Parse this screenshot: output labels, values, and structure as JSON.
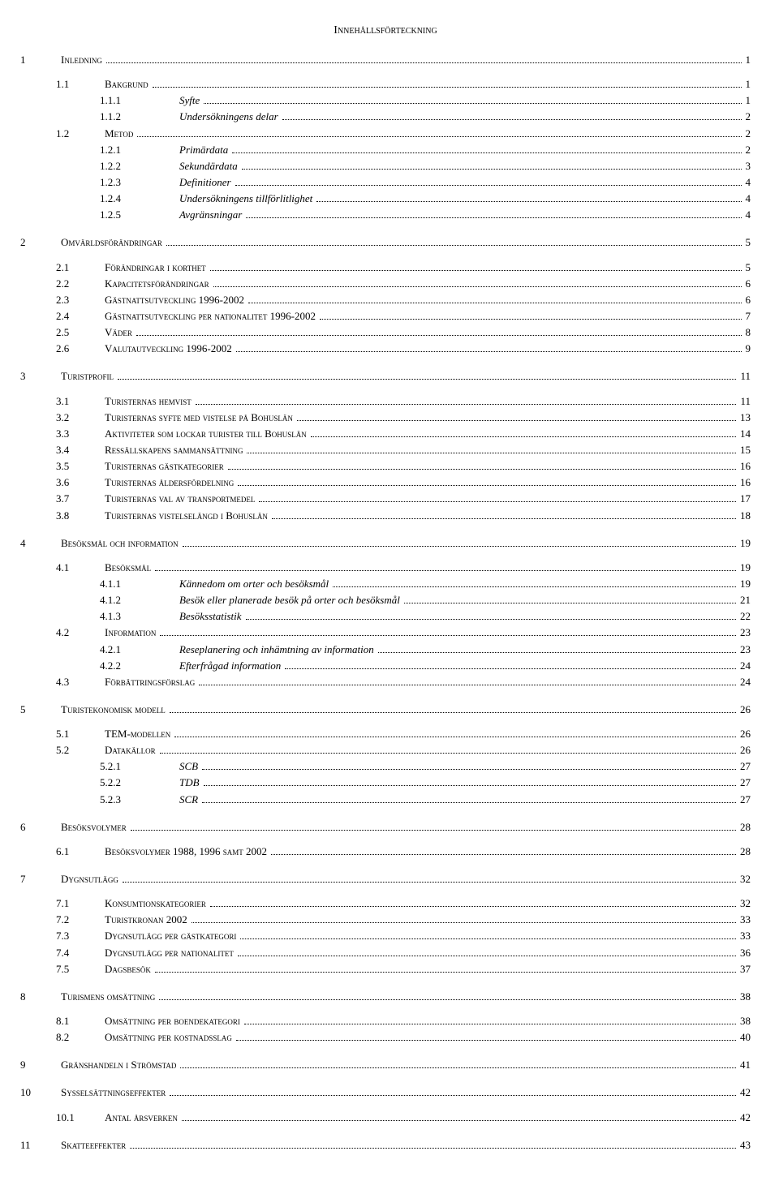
{
  "title": "Innehållsförteckning",
  "toc": [
    {
      "level": 0,
      "num": "1",
      "label": "Inledning",
      "page": "1",
      "style": "sc"
    },
    {
      "level": 1,
      "num": "1.1",
      "label": "Bakgrund",
      "page": "1",
      "style": "sc",
      "gapBefore": 10
    },
    {
      "level": 2,
      "num": "1.1.1",
      "label": "Syfte",
      "page": "1",
      "style": "italic"
    },
    {
      "level": 2,
      "num": "1.1.2",
      "label": "Undersökningens delar",
      "page": "2",
      "style": "italic"
    },
    {
      "level": 1,
      "num": "1.2",
      "label": "Metod",
      "page": "2",
      "style": "sc"
    },
    {
      "level": 2,
      "num": "1.2.1",
      "label": "Primärdata",
      "page": "2",
      "style": "italic"
    },
    {
      "level": 2,
      "num": "1.2.2",
      "label": "Sekundärdata",
      "page": "3",
      "style": "italic"
    },
    {
      "level": 2,
      "num": "1.2.3",
      "label": "Definitioner",
      "page": "4",
      "style": "italic"
    },
    {
      "level": 2,
      "num": "1.2.4",
      "label": "Undersökningens tillförlitlighet",
      "page": "4",
      "style": "italic"
    },
    {
      "level": 2,
      "num": "1.2.5",
      "label": "Avgränsningar",
      "page": "4",
      "style": "italic"
    },
    {
      "level": 0,
      "num": "2",
      "label": "Omvärldsförändringar",
      "page": "5",
      "style": "sc",
      "gapBefore": 14
    },
    {
      "level": 1,
      "num": "2.1",
      "label": "Förändringar i korthet",
      "page": "5",
      "style": "sc",
      "gapBefore": 10
    },
    {
      "level": 1,
      "num": "2.2",
      "label": "Kapacitetsförändringar",
      "page": "6",
      "style": "sc"
    },
    {
      "level": 1,
      "num": "2.3",
      "label": "Gästnattsutveckling 1996-2002",
      "page": "6",
      "style": "sc"
    },
    {
      "level": 1,
      "num": "2.4",
      "label": "Gästnattsutveckling per nationalitet 1996-2002",
      "page": "7",
      "style": "sc"
    },
    {
      "level": 1,
      "num": "2.5",
      "label": "Väder",
      "page": "8",
      "style": "sc"
    },
    {
      "level": 1,
      "num": "2.6",
      "label": "Valutautveckling 1996-2002",
      "page": "9",
      "style": "sc"
    },
    {
      "level": 0,
      "num": "3",
      "label": "Turistprofil",
      "page": "11",
      "style": "sc",
      "gapBefore": 14
    },
    {
      "level": 1,
      "num": "3.1",
      "label": "Turisternas hemvist",
      "page": "11",
      "style": "sc",
      "gapBefore": 10
    },
    {
      "level": 1,
      "num": "3.2",
      "label": "Turisternas syfte med vistelse på Bohuslän",
      "page": "13",
      "style": "sc"
    },
    {
      "level": 1,
      "num": "3.3",
      "label": "Aktiviteter som lockar turister till Bohuslän",
      "page": "14",
      "style": "sc"
    },
    {
      "level": 1,
      "num": "3.4",
      "label": "Ressällskapens sammansättning",
      "page": "15",
      "style": "sc"
    },
    {
      "level": 1,
      "num": "3.5",
      "label": "Turisternas gästkategorier",
      "page": "16",
      "style": "sc"
    },
    {
      "level": 1,
      "num": "3.6",
      "label": "Turisternas åldersfördelning",
      "page": "16",
      "style": "sc"
    },
    {
      "level": 1,
      "num": "3.7",
      "label": "Turisternas val av transportmedel",
      "page": "17",
      "style": "sc"
    },
    {
      "level": 1,
      "num": "3.8",
      "label": "Turisternas vistelselängd i Bohuslän",
      "page": "18",
      "style": "sc"
    },
    {
      "level": 0,
      "num": "4",
      "label": "Besöksmål och information",
      "page": "19",
      "style": "sc",
      "gapBefore": 14
    },
    {
      "level": 1,
      "num": "4.1",
      "label": "Besöksmål",
      "page": "19",
      "style": "sc",
      "gapBefore": 10
    },
    {
      "level": 2,
      "num": "4.1.1",
      "label": "Kännedom om orter och besöksmål",
      "page": "19",
      "style": "italic"
    },
    {
      "level": 2,
      "num": "4.1.2",
      "label": "Besök eller planerade besök på orter och besöksmål",
      "page": "21",
      "style": "italic"
    },
    {
      "level": 2,
      "num": "4.1.3",
      "label": "Besöksstatistik",
      "page": "22",
      "style": "italic"
    },
    {
      "level": 1,
      "num": "4.2",
      "label": "Information",
      "page": "23",
      "style": "sc"
    },
    {
      "level": 2,
      "num": "4.2.1",
      "label": "Reseplanering och inhämtning av information",
      "page": "23",
      "style": "italic"
    },
    {
      "level": 2,
      "num": "4.2.2",
      "label": "Efterfrågad information",
      "page": "24",
      "style": "italic"
    },
    {
      "level": 1,
      "num": "4.3",
      "label": "Förbättringsförslag",
      "page": "24",
      "style": "sc"
    },
    {
      "level": 0,
      "num": "5",
      "label": "Turistekonomisk modell",
      "page": "26",
      "style": "sc",
      "gapBefore": 14
    },
    {
      "level": 1,
      "num": "5.1",
      "label": "TEM-modellen",
      "page": "26",
      "style": "sc",
      "gapBefore": 10
    },
    {
      "level": 1,
      "num": "5.2",
      "label": "Datakällor",
      "page": "26",
      "style": "sc"
    },
    {
      "level": 2,
      "num": "5.2.1",
      "label": "SCB",
      "page": "27",
      "style": "italic"
    },
    {
      "level": 2,
      "num": "5.2.2",
      "label": "TDB",
      "page": "27",
      "style": "italic"
    },
    {
      "level": 2,
      "num": "5.2.3",
      "label": "SCR",
      "page": "27",
      "style": "italic"
    },
    {
      "level": 0,
      "num": "6",
      "label": "Besöksvolymer",
      "page": "28",
      "style": "sc",
      "gapBefore": 14
    },
    {
      "level": 1,
      "num": "6.1",
      "label": "Besöksvolymer 1988, 1996 samt 2002",
      "page": "28",
      "style": "sc",
      "gapBefore": 10
    },
    {
      "level": 0,
      "num": "7",
      "label": "Dygnsutlägg",
      "page": "32",
      "style": "sc",
      "gapBefore": 14
    },
    {
      "level": 1,
      "num": "7.1",
      "label": "Konsumtionskategorier",
      "page": "32",
      "style": "sc",
      "gapBefore": 10
    },
    {
      "level": 1,
      "num": "7.2",
      "label": "Turistkronan 2002",
      "page": "33",
      "style": "sc"
    },
    {
      "level": 1,
      "num": "7.3",
      "label": "Dygnsutlägg per gästkategori",
      "page": "33",
      "style": "sc"
    },
    {
      "level": 1,
      "num": "7.4",
      "label": "Dygnsutlägg per nationalitet",
      "page": "36",
      "style": "sc"
    },
    {
      "level": 1,
      "num": "7.5",
      "label": "Dagsbesök",
      "page": "37",
      "style": "sc"
    },
    {
      "level": 0,
      "num": "8",
      "label": "Turismens omsättning",
      "page": "38",
      "style": "sc",
      "gapBefore": 14
    },
    {
      "level": 1,
      "num": "8.1",
      "label": "Omsättning per boendekategori",
      "page": "38",
      "style": "sc",
      "gapBefore": 10
    },
    {
      "level": 1,
      "num": "8.2",
      "label": "Omsättning per kostnadsslag",
      "page": "40",
      "style": "sc"
    },
    {
      "level": 0,
      "num": "9",
      "label": "Gränshandeln i Strömstad",
      "page": "41",
      "style": "sc",
      "gapBefore": 14
    },
    {
      "level": 0,
      "num": "10",
      "label": "Sysselsättningseffekter",
      "page": "42",
      "style": "sc",
      "gapBefore": 14
    },
    {
      "level": 1,
      "num": "10.1",
      "label": "Antal årsverken",
      "page": "42",
      "style": "sc",
      "gapBefore": 10
    },
    {
      "level": 0,
      "num": "11",
      "label": "Skatteeffekter",
      "page": "43",
      "style": "sc",
      "gapBefore": 14
    }
  ]
}
